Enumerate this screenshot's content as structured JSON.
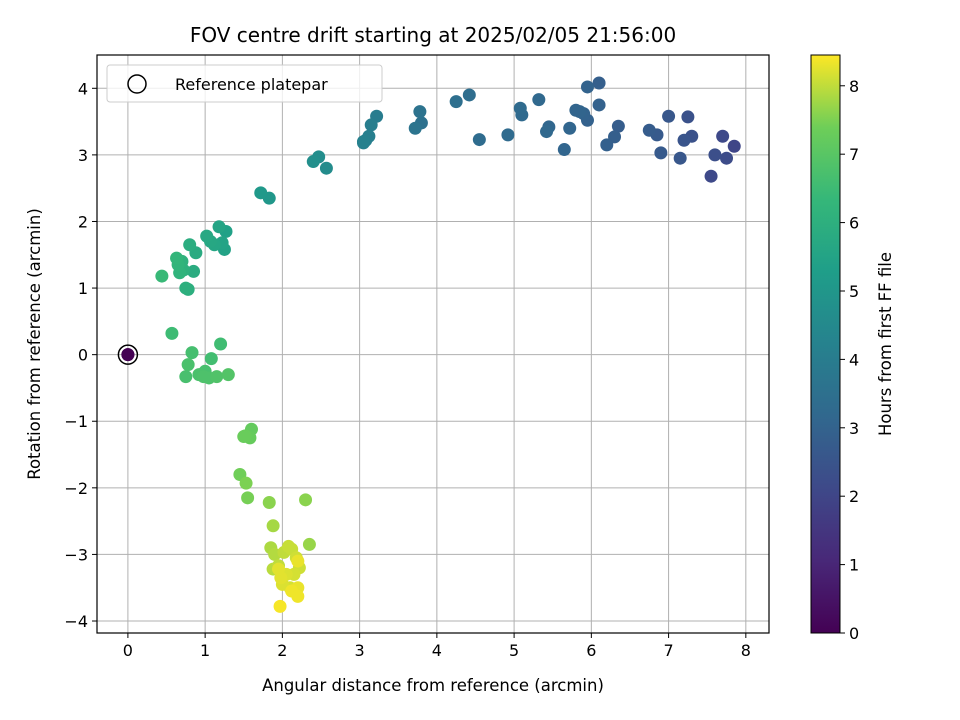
{
  "chart_data": {
    "type": "scatter",
    "title": "FOV centre drift starting at 2025/02/05 21:56:00",
    "xlabel": "Angular distance from reference (arcmin)",
    "ylabel": "Rotation from reference (arcmin)",
    "xlim": [
      -0.4,
      8.3
    ],
    "ylim": [
      -4.18,
      4.5
    ],
    "xticks": [
      0,
      1,
      2,
      3,
      4,
      5,
      6,
      7,
      8
    ],
    "yticks": [
      -4,
      -3,
      -2,
      -1,
      0,
      1,
      2,
      3,
      4
    ],
    "grid": true,
    "colormap": "viridis",
    "colorbar": {
      "label": "Hours from first FF file",
      "range": [
        0,
        8.45
      ],
      "ticks": [
        0,
        1,
        2,
        3,
        4,
        5,
        6,
        7,
        8
      ]
    },
    "legend": {
      "position": "upper-left",
      "entries": [
        "Reference platepar"
      ]
    },
    "reference": {
      "x": 0,
      "y": 0
    },
    "series": [
      {
        "x": [
          0,
          7.85,
          7.55,
          7.75,
          7.6,
          7.7,
          7.3,
          7.2,
          7.25,
          7.15,
          7.0,
          6.9,
          6.85,
          6.75,
          6.35,
          6.3,
          6.2,
          6.1,
          6.1,
          5.95,
          5.9,
          5.85,
          5.8,
          5.95,
          5.72,
          5.65,
          5.45,
          5.42,
          5.32,
          5.1,
          5.08,
          4.92,
          4.55,
          4.42,
          4.25,
          3.8,
          3.78,
          3.72,
          3.22,
          3.15,
          3.12,
          3.08,
          3.05,
          3.05,
          2.57,
          2.47,
          2.4,
          1.83,
          1.72,
          1.27,
          1.25,
          1.22,
          1.18,
          1.12,
          1.07,
          1.02,
          0.88,
          0.85,
          0.8,
          0.78,
          0.75,
          0.72,
          0.7,
          0.67,
          0.65,
          0.63,
          0.44,
          0.57,
          1.2,
          1.08,
          0.83,
          1.0,
          0.75,
          0.92,
          0.78,
          0.98,
          1.05,
          1.15,
          1.3,
          1.6,
          1.58,
          1.52,
          1.5,
          1.45,
          1.55,
          1.53,
          1.83,
          2.3,
          2.35,
          1.88,
          1.85,
          1.9,
          1.88,
          1.95,
          2.02,
          2.08,
          2.12,
          2.18,
          2.22,
          2.15,
          2.1,
          2.05,
          2.0,
          1.98,
          1.95,
          2.2,
          2.2,
          2.12,
          2.2,
          1.97
        ],
        "y": [
          0,
          3.13,
          2.68,
          2.95,
          3.0,
          3.28,
          3.28,
          3.22,
          3.57,
          2.95,
          3.58,
          3.03,
          3.3,
          3.37,
          3.43,
          3.27,
          3.15,
          4.08,
          3.75,
          3.52,
          3.62,
          3.65,
          3.67,
          4.02,
          3.4,
          3.08,
          3.42,
          3.35,
          3.83,
          3.6,
          3.7,
          3.3,
          3.23,
          3.9,
          3.8,
          3.48,
          3.65,
          3.4,
          3.58,
          3.45,
          3.28,
          3.22,
          3.18,
          3.2,
          2.8,
          2.97,
          2.9,
          2.35,
          2.43,
          1.85,
          1.58,
          1.68,
          1.92,
          1.65,
          1.7,
          1.78,
          1.53,
          1.25,
          1.65,
          0.98,
          1.0,
          1.27,
          1.4,
          1.23,
          1.35,
          1.45,
          1.18,
          0.32,
          0.16,
          -0.06,
          0.03,
          -0.25,
          -0.33,
          -0.3,
          -0.15,
          -0.33,
          -0.35,
          -0.33,
          -0.3,
          -1.12,
          -1.25,
          -1.22,
          -1.23,
          -1.8,
          -2.15,
          -1.93,
          -2.22,
          -2.18,
          -2.85,
          -2.57,
          -2.9,
          -3.0,
          -3.22,
          -3.17,
          -2.97,
          -2.88,
          -2.92,
          -3.05,
          -3.2,
          -3.3,
          -3.5,
          -3.3,
          -3.45,
          -3.35,
          -3.22,
          -3.5,
          -3.1,
          -3.55,
          -3.63,
          -3.78
        ],
        "hours": [
          0,
          2.0,
          2.1,
          2.2,
          2.3,
          2.1,
          2.4,
          2.5,
          2.4,
          2.6,
          2.6,
          2.7,
          2.7,
          2.75,
          2.8,
          2.85,
          2.9,
          2.85,
          2.95,
          2.95,
          3.0,
          3.05,
          3.05,
          3.0,
          3.1,
          3.1,
          3.15,
          3.2,
          3.2,
          3.25,
          3.3,
          3.3,
          3.35,
          3.4,
          3.45,
          3.55,
          3.6,
          3.65,
          4.0,
          4.05,
          4.1,
          4.1,
          4.15,
          4.2,
          4.6,
          4.65,
          4.7,
          5.0,
          5.1,
          5.4,
          5.45,
          5.5,
          5.55,
          5.6,
          5.65,
          5.7,
          5.8,
          5.85,
          5.9,
          5.95,
          6.0,
          6.05,
          6.1,
          6.15,
          6.2,
          6.25,
          6.4,
          6.5,
          6.55,
          6.6,
          6.65,
          6.7,
          6.7,
          6.75,
          6.75,
          6.8,
          6.8,
          6.85,
          6.9,
          7.2,
          7.25,
          7.3,
          7.3,
          7.4,
          7.45,
          7.5,
          7.6,
          7.6,
          7.7,
          7.8,
          7.85,
          7.9,
          7.95,
          8.0,
          8.0,
          8.05,
          8.05,
          8.1,
          8.1,
          8.15,
          8.15,
          8.2,
          8.2,
          8.25,
          8.25,
          8.3,
          8.3,
          8.35,
          8.35,
          8.4
        ]
      }
    ]
  }
}
